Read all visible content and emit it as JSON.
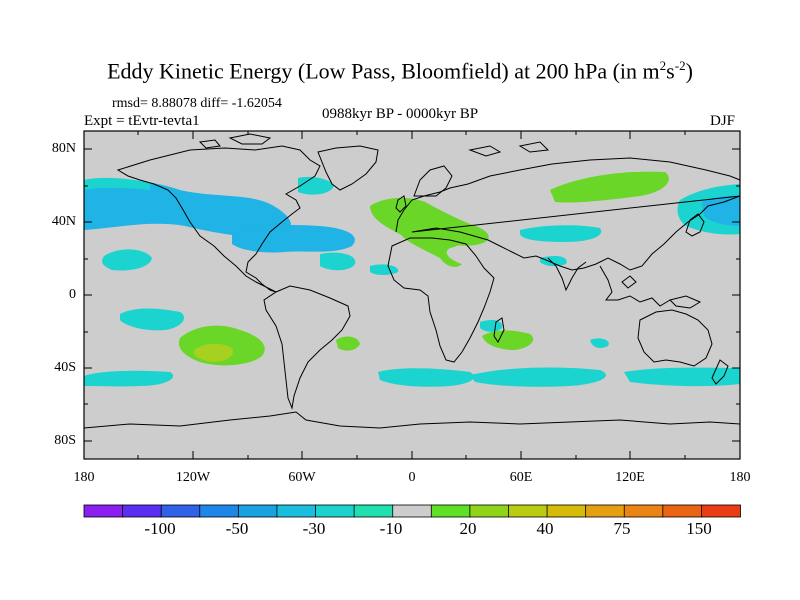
{
  "title": {
    "main": "Eddy Kinetic Energy (Low Pass, Bloomfield) at 200 hPa (in m",
    "sup1": "2",
    "mid": "s",
    "sup2": "-2",
    "end": ")"
  },
  "stats": {
    "rmsd_line": "rmsd= 8.88078 diff= -1.62054"
  },
  "experiment": "Expt = tEvtr-tevta1",
  "period": "0988kyr BP - 0000kyr BP",
  "season": "DJF",
  "axes": {
    "y_labels": [
      "80N",
      "40N",
      "0",
      "40S",
      "80S"
    ],
    "x_labels": [
      "180",
      "120W",
      "60W",
      "0",
      "60E",
      "120E",
      "180"
    ]
  },
  "colorbar": {
    "labels": [
      "-100",
      "-50",
      "-30",
      "-10",
      "20",
      "40",
      "75",
      "150"
    ],
    "colors": [
      "#8a1ff0",
      "#5a2ff0",
      "#2f62e8",
      "#1d86e6",
      "#18a3e0",
      "#19bede",
      "#1bd3cc",
      "#20e0b0",
      "#cdcdcd",
      "#5fe024",
      "#8fd418",
      "#b9cc10",
      "#d6bb08",
      "#e4a010",
      "#ea8412",
      "#ea6414",
      "#e83c14"
    ]
  },
  "colors": {
    "land_bg": "#cdcdcd",
    "neg_blue": "#1fb3e6",
    "neg_cyan": "#1cd4cf",
    "pos_green": "#6ad628",
    "pos_yellow": "#a8d020"
  }
}
